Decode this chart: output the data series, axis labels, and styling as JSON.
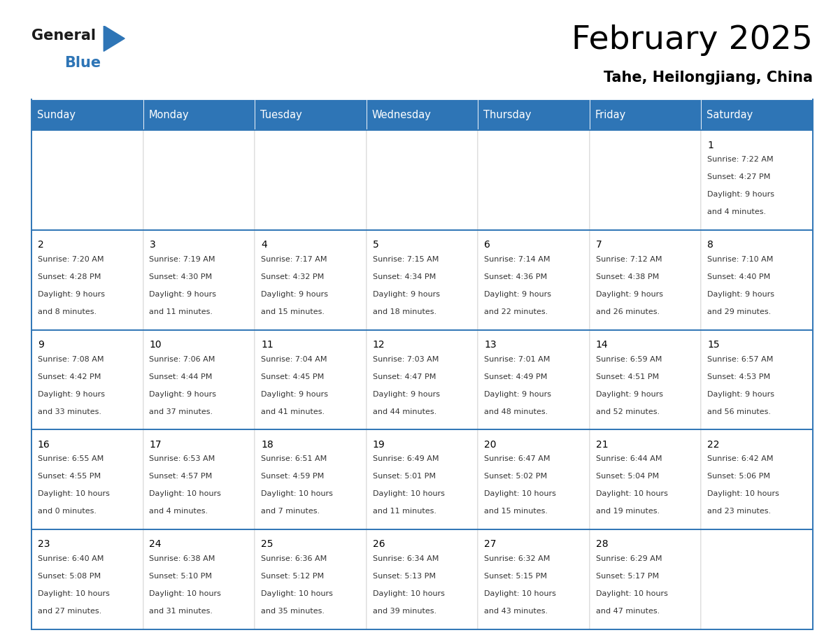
{
  "title": "February 2025",
  "subtitle": "Tahe, Heilongjiang, China",
  "header_color": "#2E75B6",
  "header_text_color": "#FFFFFF",
  "day_names": [
    "Sunday",
    "Monday",
    "Tuesday",
    "Wednesday",
    "Thursday",
    "Friday",
    "Saturday"
  ],
  "background_color": "#FFFFFF",
  "border_color": "#2E75B6",
  "cell_border_color": "#AAAAAA",
  "text_color": "#333333",
  "logo_general_color": "#1A1A1A",
  "logo_blue_color": "#2E75B6",
  "days": [
    {
      "day": 1,
      "col": 6,
      "row": 0,
      "sunrise": "7:22 AM",
      "sunset": "4:27 PM",
      "daylight": "9 hours and 4 minutes."
    },
    {
      "day": 2,
      "col": 0,
      "row": 1,
      "sunrise": "7:20 AM",
      "sunset": "4:28 PM",
      "daylight": "9 hours and 8 minutes."
    },
    {
      "day": 3,
      "col": 1,
      "row": 1,
      "sunrise": "7:19 AM",
      "sunset": "4:30 PM",
      "daylight": "9 hours and 11 minutes."
    },
    {
      "day": 4,
      "col": 2,
      "row": 1,
      "sunrise": "7:17 AM",
      "sunset": "4:32 PM",
      "daylight": "9 hours and 15 minutes."
    },
    {
      "day": 5,
      "col": 3,
      "row": 1,
      "sunrise": "7:15 AM",
      "sunset": "4:34 PM",
      "daylight": "9 hours and 18 minutes."
    },
    {
      "day": 6,
      "col": 4,
      "row": 1,
      "sunrise": "7:14 AM",
      "sunset": "4:36 PM",
      "daylight": "9 hours and 22 minutes."
    },
    {
      "day": 7,
      "col": 5,
      "row": 1,
      "sunrise": "7:12 AM",
      "sunset": "4:38 PM",
      "daylight": "9 hours and 26 minutes."
    },
    {
      "day": 8,
      "col": 6,
      "row": 1,
      "sunrise": "7:10 AM",
      "sunset": "4:40 PM",
      "daylight": "9 hours and 29 minutes."
    },
    {
      "day": 9,
      "col": 0,
      "row": 2,
      "sunrise": "7:08 AM",
      "sunset": "4:42 PM",
      "daylight": "9 hours and 33 minutes."
    },
    {
      "day": 10,
      "col": 1,
      "row": 2,
      "sunrise": "7:06 AM",
      "sunset": "4:44 PM",
      "daylight": "9 hours and 37 minutes."
    },
    {
      "day": 11,
      "col": 2,
      "row": 2,
      "sunrise": "7:04 AM",
      "sunset": "4:45 PM",
      "daylight": "9 hours and 41 minutes."
    },
    {
      "day": 12,
      "col": 3,
      "row": 2,
      "sunrise": "7:03 AM",
      "sunset": "4:47 PM",
      "daylight": "9 hours and 44 minutes."
    },
    {
      "day": 13,
      "col": 4,
      "row": 2,
      "sunrise": "7:01 AM",
      "sunset": "4:49 PM",
      "daylight": "9 hours and 48 minutes."
    },
    {
      "day": 14,
      "col": 5,
      "row": 2,
      "sunrise": "6:59 AM",
      "sunset": "4:51 PM",
      "daylight": "9 hours and 52 minutes."
    },
    {
      "day": 15,
      "col": 6,
      "row": 2,
      "sunrise": "6:57 AM",
      "sunset": "4:53 PM",
      "daylight": "9 hours and 56 minutes."
    },
    {
      "day": 16,
      "col": 0,
      "row": 3,
      "sunrise": "6:55 AM",
      "sunset": "4:55 PM",
      "daylight": "10 hours and 0 minutes."
    },
    {
      "day": 17,
      "col": 1,
      "row": 3,
      "sunrise": "6:53 AM",
      "sunset": "4:57 PM",
      "daylight": "10 hours and 4 minutes."
    },
    {
      "day": 18,
      "col": 2,
      "row": 3,
      "sunrise": "6:51 AM",
      "sunset": "4:59 PM",
      "daylight": "10 hours and 7 minutes."
    },
    {
      "day": 19,
      "col": 3,
      "row": 3,
      "sunrise": "6:49 AM",
      "sunset": "5:01 PM",
      "daylight": "10 hours and 11 minutes."
    },
    {
      "day": 20,
      "col": 4,
      "row": 3,
      "sunrise": "6:47 AM",
      "sunset": "5:02 PM",
      "daylight": "10 hours and 15 minutes."
    },
    {
      "day": 21,
      "col": 5,
      "row": 3,
      "sunrise": "6:44 AM",
      "sunset": "5:04 PM",
      "daylight": "10 hours and 19 minutes."
    },
    {
      "day": 22,
      "col": 6,
      "row": 3,
      "sunrise": "6:42 AM",
      "sunset": "5:06 PM",
      "daylight": "10 hours and 23 minutes."
    },
    {
      "day": 23,
      "col": 0,
      "row": 4,
      "sunrise": "6:40 AM",
      "sunset": "5:08 PM",
      "daylight": "10 hours and 27 minutes."
    },
    {
      "day": 24,
      "col": 1,
      "row": 4,
      "sunrise": "6:38 AM",
      "sunset": "5:10 PM",
      "daylight": "10 hours and 31 minutes."
    },
    {
      "day": 25,
      "col": 2,
      "row": 4,
      "sunrise": "6:36 AM",
      "sunset": "5:12 PM",
      "daylight": "10 hours and 35 minutes."
    },
    {
      "day": 26,
      "col": 3,
      "row": 4,
      "sunrise": "6:34 AM",
      "sunset": "5:13 PM",
      "daylight": "10 hours and 39 minutes."
    },
    {
      "day": 27,
      "col": 4,
      "row": 4,
      "sunrise": "6:32 AM",
      "sunset": "5:15 PM",
      "daylight": "10 hours and 43 minutes."
    },
    {
      "day": 28,
      "col": 5,
      "row": 4,
      "sunrise": "6:29 AM",
      "sunset": "5:17 PM",
      "daylight": "10 hours and 47 minutes."
    }
  ]
}
